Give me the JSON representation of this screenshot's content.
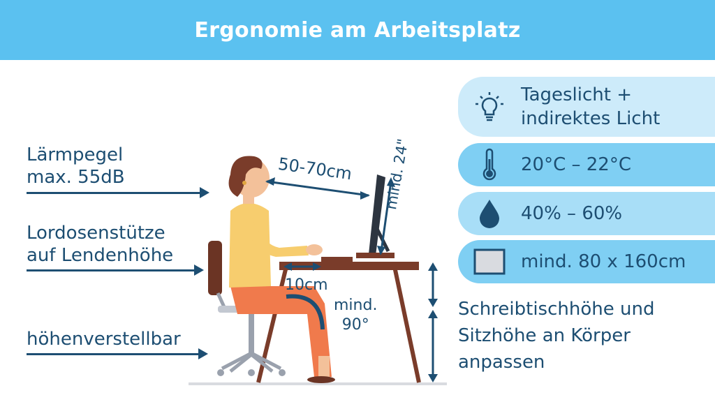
{
  "header": {
    "title": "Ergonomie am Arbeitsplatz"
  },
  "left_labels": {
    "noise_line1": "Lärmpegel",
    "noise_line2": "max. 55dB",
    "lumbar_line1": "Lordosenstütze",
    "lumbar_line2": "auf Lendenhöhe",
    "adjustable": "höhenverstellbar"
  },
  "measurements": {
    "eye_distance": "50-70cm",
    "monitor_size": "mind. 24\"",
    "knee_gap": "10cm",
    "knee_angle_line1": "mind.",
    "knee_angle_line2": "90°"
  },
  "panels": [
    {
      "icon": "lightbulb-icon",
      "line1": "Tageslicht +",
      "line2": "indirektes Licht"
    },
    {
      "icon": "thermometer-icon",
      "line1": "20°C – 22°C"
    },
    {
      "icon": "water-drop-icon",
      "line1": "40% – 60%"
    },
    {
      "icon": "desk-surface-icon",
      "line1": "mind. 80 x 160cm"
    }
  ],
  "right_note": {
    "line1": "Schreibtischhöhe und",
    "line2": "Sitzhöhe an Körper",
    "line3": "anpassen"
  },
  "colors": {
    "header": "#5bc1f0",
    "panel_light": "#cdebfa",
    "panel_mid": "#7fcff3",
    "text_dark": "#1d4e72"
  }
}
